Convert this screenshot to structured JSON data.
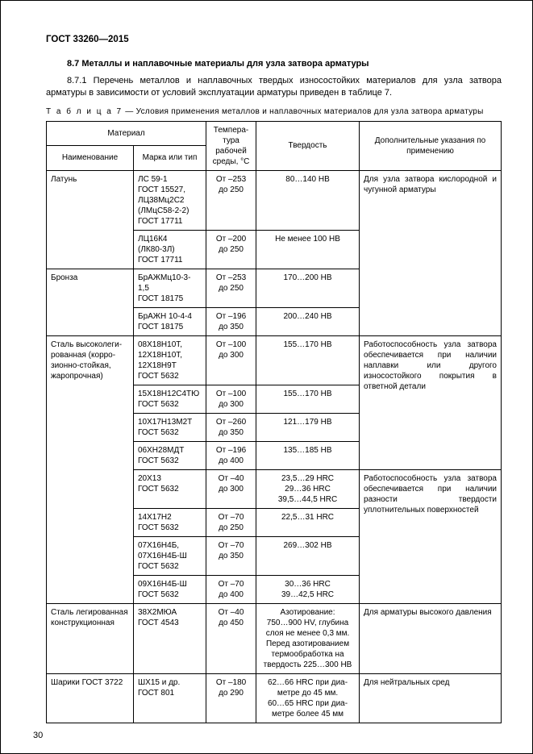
{
  "header": "ГОСТ 33260—2015",
  "section_title": "8.7  Металлы и наплавочные материалы для узла затвора арматуры",
  "para": "8.7.1 Перечень металлов и наплавочных твердых износостойких материалов для узла затвора арматуры в зависимости от условий эксплуатации арматуры приведен в таблице 7.",
  "table_caption_label": "Т а б л и ц а  7",
  "table_caption_text": " — Условия применения металлов и наплавочных материалов для узла затвора арматуры",
  "th_material": "Материал",
  "th_name": "Наименование",
  "th_mark": "Марка или тип",
  "th_temp": "Темпера­ту­ра рабочей среды, °С",
  "th_hard": "Твердость",
  "th_note": "Дополнительные указания по применению",
  "r1": {
    "name": "Латунь",
    "mark": "ЛС 59-1\nГОСТ 15527,\nЛЦ38Мц2С2\n(ЛМцС58-2-2)\nГОСТ 17711",
    "temp": "От –253\nдо 250",
    "hard": "80…140 HB",
    "note": "Для узла затвора кислород­ной и чугунной арматуры"
  },
  "r2": {
    "mark": "ЛЦ16К4\n(ЛК80-3Л)\nГОСТ 17711",
    "temp": "От –200\nдо 250",
    "hard": "Не менее 100 HB"
  },
  "r3": {
    "name": "Бронза",
    "mark": "БрАЖМц10-3-1,5\nГОСТ 18175",
    "temp": "От –253\nдо 250",
    "hard": "170…200 HB"
  },
  "r4": {
    "mark": "БрАЖН 10-4-4\nГОСТ 18175",
    "temp": "От –196\nдо 350",
    "hard": "200…240 HB"
  },
  "r5": {
    "name": "Сталь высоколеги­рованная (корро­зионно-стойкая, жаропрочная)",
    "mark": "08Х18Н10Т,\n12Х18Н10Т,\n12Х18Н9Т\nГОСТ 5632",
    "temp": "От –100\nдо 300",
    "hard": "155…170 HB",
    "note": "Работоспособность узла затвора обеспечивается при наличии наплавки или другого износостойкого по­крытия в ответной детали"
  },
  "r6": {
    "mark": "15Х18Н12С4ТЮ\nГОСТ 5632",
    "temp": "От –100\nдо 300",
    "hard": "155…170 HB"
  },
  "r7": {
    "mark": "10Х17Н13М2Т\nГОСТ 5632",
    "temp": "От –260\nдо 350",
    "hard": "121…179 HB"
  },
  "r8": {
    "mark": "06ХН28МДТ\nГОСТ 5632",
    "temp": "От –196\nдо 400",
    "hard": "135…185 HB"
  },
  "r9": {
    "mark": "20Х13\nГОСТ 5632",
    "temp": "От –40\nдо 300",
    "hard": "23,5…29 HRC\n29…36 HRC\n39,5…44,5 HRC",
    "note": "Работоспособность узла затвора обеспечивает­ся при наличии разности твердости уплотнительных поверхностей"
  },
  "r10": {
    "mark": "14Х17Н2\nГОСТ 5632",
    "temp": "От –70\nдо 250",
    "hard": "22,5…31 HRC"
  },
  "r11": {
    "mark": "07Х16Н4Б,\n07Х16Н4Б-Ш\nГОСТ 5632",
    "temp": "От –70\nдо 350",
    "hard": "269…302 HB"
  },
  "r12": {
    "mark": "09Х16Н4Б-Ш\nГОСТ 5632",
    "temp": "От –70\nдо 400",
    "hard": "30…36 HRC\n39…42,5 HRC"
  },
  "r13": {
    "name": "Сталь легирован­ная конструкцион­ная",
    "mark": "38Х2МЮА\nГОСТ 4543",
    "temp": "От –40\nдо 450",
    "hard": "Азотирование:\n750…900 HV, глубина слоя не менее 0,3 мм.\nПеред азотированием термообработка на твердость 225…300 HB",
    "note": "Для арматуры высокого давления"
  },
  "r14": {
    "name": "Шарики ГОСТ 3722",
    "mark": "ШХ15 и др.\nГОСТ 801",
    "temp": "От –180\nдо 290",
    "hard": "62…66 HRC при диа­метре до 45 мм.\n60…65 HRC при диа­метре более 45 мм",
    "note": "Для нейтральных сред"
  },
  "page_num": "30"
}
